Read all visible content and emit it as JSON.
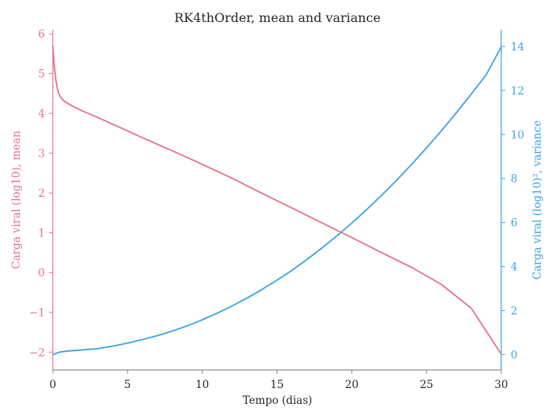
{
  "chart_data": {
    "type": "line",
    "title": "RK4thOrder, mean and variance",
    "xlabel": "Tempo (dias)",
    "ylabel_left": "Carga viral (log10), mean",
    "ylabel_right": "Carga viral (log10)², variance",
    "xlim": [
      0,
      30
    ],
    "ylim_left": [
      -2.45,
      6.1
    ],
    "ylim_right": [
      -0.7,
      14.75
    ],
    "xticks": [
      0,
      5,
      10,
      15,
      20,
      25,
      30
    ],
    "yticks_left": [
      6,
      5,
      4,
      3,
      2,
      1,
      0,
      -1,
      -2
    ],
    "yticks_left_labels": [
      "6",
      "5",
      "4",
      "3",
      "2",
      "1",
      "0",
      "−1",
      "−2"
    ],
    "yticks_right": [
      0,
      2,
      4,
      6,
      8,
      10,
      12,
      14
    ],
    "grid": false,
    "colors": {
      "left": "#e8708a",
      "right": "#3ba3e1",
      "axis": "#8c8c8c"
    },
    "series": [
      {
        "axis": "left",
        "x": [
          0,
          0.1,
          0.2,
          0.3,
          0.4,
          0.5,
          0.7,
          1,
          1.5,
          2,
          3,
          4,
          5,
          6,
          8,
          10,
          12,
          14,
          16,
          18,
          20,
          22,
          24,
          26,
          28,
          30
        ],
        "values": [
          5.7,
          5.2,
          4.85,
          4.63,
          4.5,
          4.42,
          4.33,
          4.25,
          4.15,
          4.06,
          3.9,
          3.73,
          3.56,
          3.39,
          3.06,
          2.72,
          2.37,
          1.99,
          1.62,
          1.25,
          0.88,
          0.5,
          0.13,
          -0.3,
          -0.9,
          -2.05
        ]
      },
      {
        "axis": "right",
        "x": [
          0,
          0.2,
          0.5,
          1,
          2,
          3,
          4,
          5,
          6,
          7,
          8,
          9,
          10,
          11,
          12,
          13,
          14,
          15,
          16,
          17,
          18,
          19,
          20,
          21,
          22,
          23,
          24,
          25,
          26,
          27,
          28,
          29,
          30
        ],
        "values": [
          0.0,
          0.05,
          0.12,
          0.16,
          0.21,
          0.27,
          0.38,
          0.52,
          0.68,
          0.86,
          1.07,
          1.31,
          1.58,
          1.88,
          2.21,
          2.57,
          2.96,
          3.38,
          3.83,
          4.32,
          4.84,
          5.39,
          5.97,
          6.59,
          7.24,
          7.92,
          8.64,
          9.39,
          10.17,
          10.99,
          11.84,
          12.72,
          13.98
        ]
      }
    ]
  }
}
